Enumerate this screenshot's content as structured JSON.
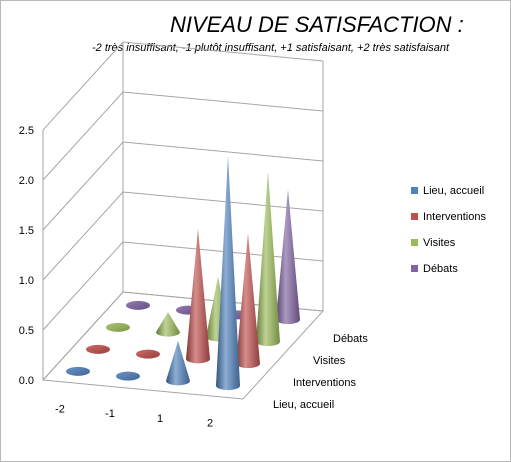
{
  "chart_data": {
    "type": "bar",
    "style": "3d-cone",
    "title": "NIVEAU DE SATISFACTION :",
    "subtitle": "-2 très insuffisant, -1 plutôt insuffisant, +1 satisfaisant, +2 très satisfaisant",
    "categories": [
      "-2",
      "-1",
      "1",
      "2"
    ],
    "series": [
      {
        "name": "Lieu, accueil",
        "color": "#4f81bd",
        "values": [
          0.0,
          0.0,
          0.4,
          2.3
        ]
      },
      {
        "name": "Interventions",
        "color": "#c0504d",
        "values": [
          0.0,
          0.0,
          1.3,
          1.3
        ]
      },
      {
        "name": "Visites",
        "color": "#9bbb59",
        "values": [
          0.0,
          0.2,
          0.6,
          1.7
        ]
      },
      {
        "name": "Débats",
        "color": "#8064a2",
        "values": [
          0.0,
          0.0,
          0.0,
          1.3
        ]
      }
    ],
    "ylim": [
      0,
      2.5
    ],
    "yticks": [
      "0.0",
      "0.5",
      "1.0",
      "1.5",
      "2.0",
      "2.5"
    ],
    "grid": true,
    "legend_position": "right"
  }
}
